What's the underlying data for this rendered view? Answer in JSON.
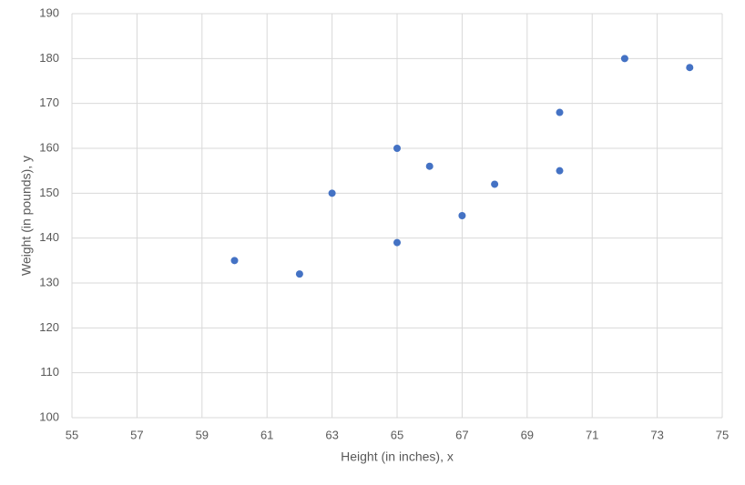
{
  "chart_data": {
    "type": "scatter",
    "x_label": "Height (in inches), x",
    "y_label": "Weight (in pounds), y",
    "series": [
      {
        "color": "#4472c4",
        "x": [
          60,
          62,
          63,
          65,
          65,
          66,
          67,
          68,
          70,
          70,
          72,
          74
        ],
        "values": [
          135,
          132,
          150,
          160,
          139,
          156,
          145,
          152,
          168,
          155,
          180,
          178
        ]
      }
    ],
    "xlim": [
      55,
      75
    ],
    "xticks": [
      55,
      57,
      59,
      61,
      63,
      65,
      67,
      69,
      71,
      73,
      75
    ],
    "ylim": [
      100,
      190
    ],
    "yticks": [
      100,
      110,
      120,
      130,
      140,
      150,
      160,
      170,
      180,
      190
    ],
    "grid": true
  }
}
